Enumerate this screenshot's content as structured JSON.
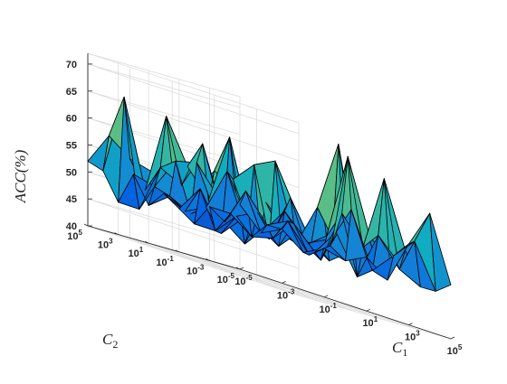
{
  "chart_data": {
    "type": "surface3d",
    "title": "",
    "xlabel": "C_1",
    "ylabel": "C_2",
    "zlabel": "ACC(%)",
    "x_ticks": [
      "10^-5",
      "10^-3",
      "10^-1",
      "10^1",
      "10^3",
      "10^5"
    ],
    "y_ticks": [
      "10^-5",
      "10^-3",
      "10^-1",
      "10^1",
      "10^3",
      "10^5"
    ],
    "z_ticks": [
      40,
      45,
      50,
      55,
      60,
      65,
      70
    ],
    "zlim": [
      40,
      72
    ],
    "grid": true,
    "colormap": "parula",
    "x_values": [
      -5,
      -4,
      -3,
      -2,
      -1,
      0,
      1,
      2,
      3,
      4,
      5
    ],
    "y_values": [
      -5,
      -4,
      -3,
      -2,
      -1,
      0,
      1,
      2,
      3,
      4,
      5
    ],
    "z_rows_by_y": [
      [
        52,
        48,
        50,
        47,
        49,
        48,
        50,
        47,
        55,
        62,
        50
      ],
      [
        48,
        55,
        50,
        52,
        47,
        50,
        58,
        48,
        52,
        56,
        48
      ],
      [
        50,
        50,
        47,
        48,
        52,
        48,
        53,
        46,
        55,
        50,
        48
      ],
      [
        46,
        46,
        50,
        52,
        47,
        51,
        47,
        57,
        52,
        66,
        54
      ],
      [
        48,
        53,
        46,
        50,
        49,
        54,
        49,
        52,
        68,
        55,
        50
      ],
      [
        50,
        48,
        50,
        58,
        50,
        48,
        57,
        50,
        52,
        52,
        50
      ],
      [
        47,
        50,
        48,
        51,
        57,
        61,
        63,
        49,
        57,
        70,
        48
      ],
      [
        52,
        51,
        57,
        58,
        53,
        53,
        49,
        50,
        50,
        57,
        50
      ],
      [
        46,
        46,
        55,
        53,
        62,
        49,
        46,
        55,
        51,
        52,
        48
      ],
      [
        51,
        66,
        50,
        65,
        57,
        52,
        65,
        50,
        55,
        54,
        50
      ],
      [
        52,
        58,
        55,
        54,
        56,
        52,
        58,
        55,
        52,
        52,
        50
      ]
    ]
  }
}
